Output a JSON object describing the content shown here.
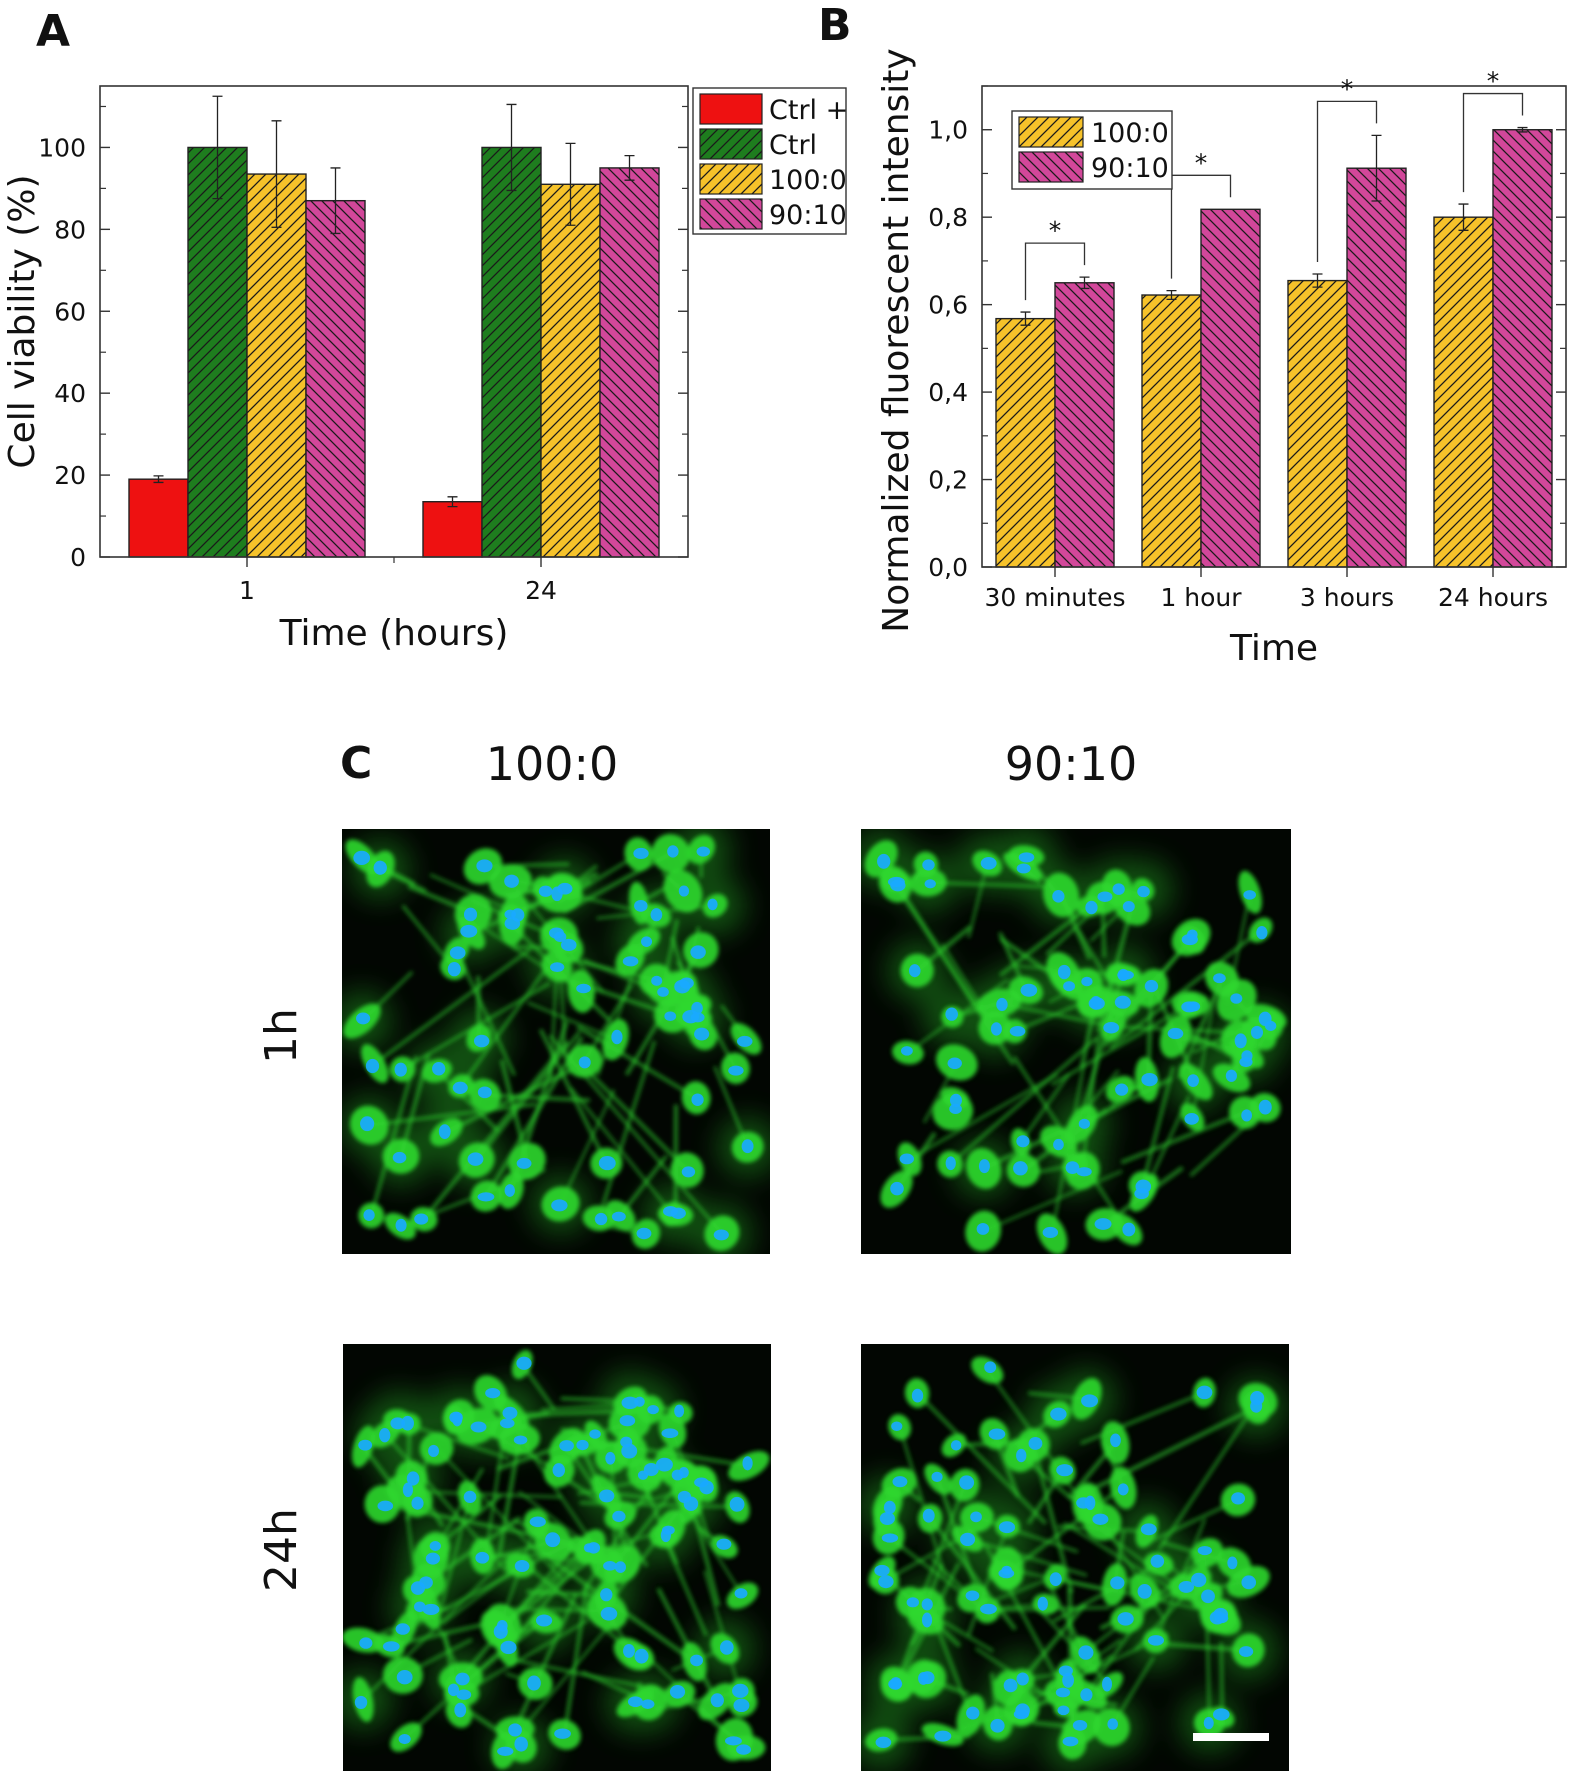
{
  "panels": {
    "a_letter": "A",
    "b_letter": "B",
    "c_letter": "C"
  },
  "colors": {
    "ctrl_plus": "#ee1111",
    "ctrl": "#1e7d1e",
    "r100_0": "#f6c22a",
    "r90_10": "#d2479a",
    "micro_bg": "#020602",
    "cell_green": "#2fd82f",
    "nucleus_blue": "#19a9ff"
  },
  "chart_data": [
    {
      "panel": "A",
      "type": "bar",
      "title": "",
      "xlabel": "Time (hours)",
      "ylabel": "Cell viability (%)",
      "categories": [
        "1",
        "24"
      ],
      "ylim": [
        0,
        115
      ],
      "yticks": [
        0,
        20,
        40,
        60,
        80,
        100
      ],
      "legend_position": "top-right",
      "grid": false,
      "series": [
        {
          "name": "Ctrl +",
          "values": [
            19,
            13.5
          ],
          "errors": [
            0.8,
            1.2
          ],
          "color": "#ee1111",
          "pattern": "none"
        },
        {
          "name": "Ctrl",
          "values": [
            100,
            100
          ],
          "errors": [
            12.5,
            10.5
          ],
          "color": "#1e7d1e",
          "pattern": "diag-right"
        },
        {
          "name": "100:0",
          "values": [
            93.5,
            91
          ],
          "errors": [
            13,
            10
          ],
          "color": "#f6c22a",
          "pattern": "diag-right"
        },
        {
          "name": "90:10",
          "values": [
            87,
            95
          ],
          "errors": [
            8,
            3
          ],
          "color": "#d2479a",
          "pattern": "diag-left"
        }
      ]
    },
    {
      "panel": "B",
      "type": "bar",
      "title": "",
      "xlabel": "Time",
      "ylabel": "Normalized fluorescent intensity",
      "categories": [
        "30 minutes",
        "1 hour",
        "3 hours",
        "24 hours"
      ],
      "ylim": [
        0,
        1.1
      ],
      "yticks": [
        "0,0",
        "0,2",
        "0,4",
        "0,6",
        "0,8",
        "1,0"
      ],
      "legend_position": "top-left",
      "grid": false,
      "series": [
        {
          "name": "100:0",
          "values": [
            0.568,
            0.622,
            0.655,
            0.8
          ],
          "errors": [
            0.015,
            0.01,
            0.015,
            0.03
          ],
          "color": "#f6c22a",
          "pattern": "diag-right"
        },
        {
          "name": "90:10",
          "values": [
            0.65,
            0.818,
            0.912,
            1.0
          ],
          "errors": [
            0.013,
            0,
            0.075,
            0.005
          ],
          "color": "#d2479a",
          "pattern": "diag-left"
        }
      ],
      "annotations": [
        {
          "text": "*",
          "category": "30 minutes"
        },
        {
          "text": "*",
          "category": "1 hour"
        },
        {
          "text": "*",
          "category": "3 hours"
        },
        {
          "text": "*",
          "category": "24 hours"
        }
      ]
    }
  ],
  "micrographs": {
    "columns": [
      "100:0",
      "90:10"
    ],
    "rows": [
      "1h",
      "24h"
    ],
    "scale_bar": true
  }
}
